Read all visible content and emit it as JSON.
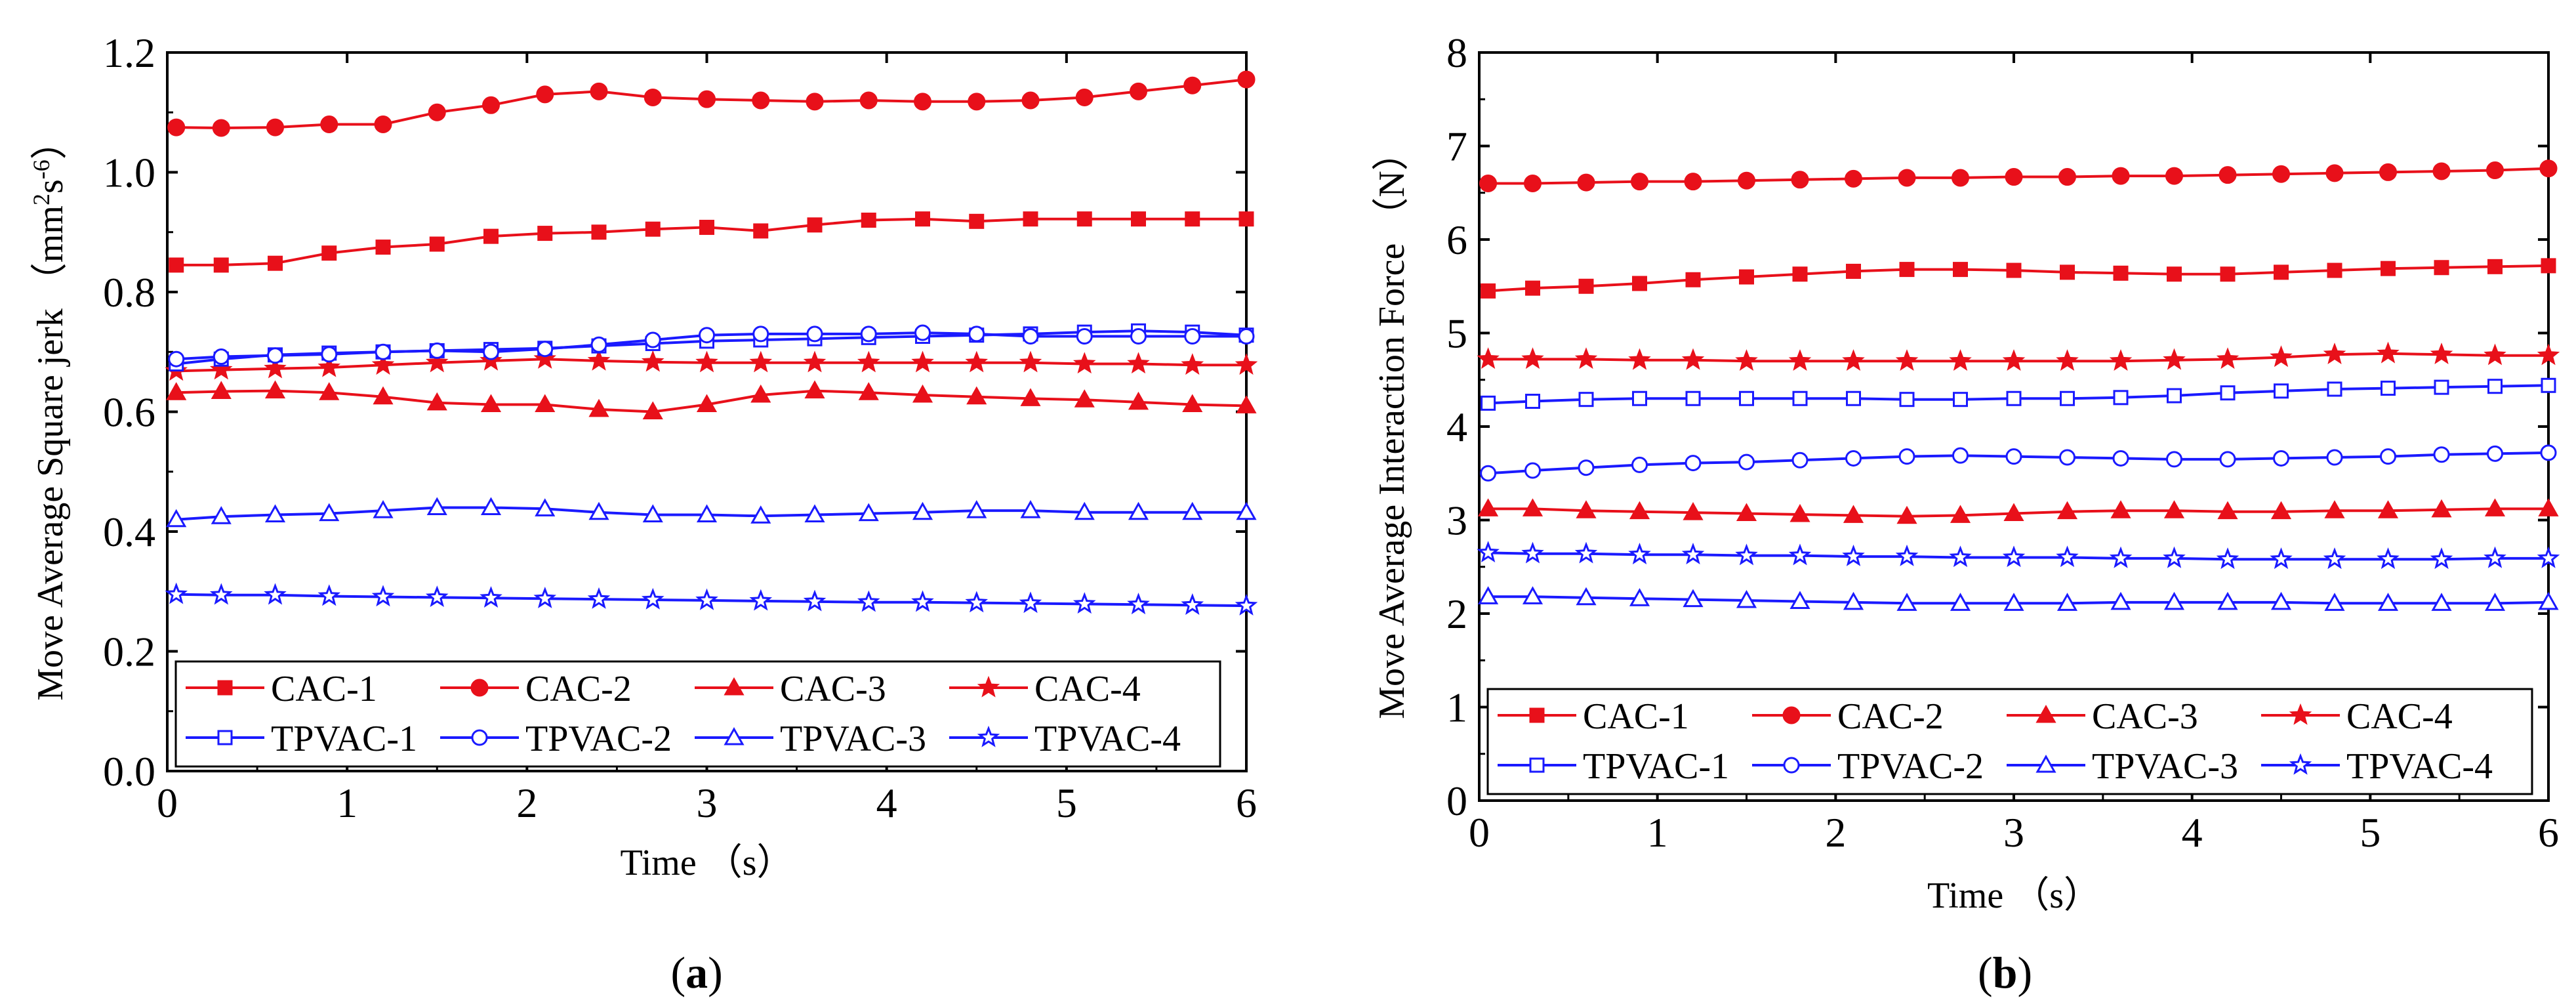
{
  "chart_data": [
    {
      "panel_label": "a",
      "type": "line",
      "xlabel": "Time （s）",
      "ylabel": "Move Average Square jerk （mm²s⁻⁶）",
      "ylabel_main": "Move Average Square jerk",
      "ylabel_unit_pre": "（mm",
      "ylabel_unit_exp1": "2",
      "ylabel_unit_mid": "s",
      "ylabel_unit_exp2": "-6",
      "ylabel_unit_post": "）",
      "xlim": [
        0,
        6
      ],
      "ylim": [
        0,
        1.2
      ],
      "xticks": [
        "0",
        "1",
        "2",
        "3",
        "4",
        "5",
        "6"
      ],
      "yticks": [
        "0.0",
        "0.2",
        "0.4",
        "0.6",
        "0.8",
        "1.0",
        "1.2"
      ],
      "x": [
        0.05,
        0.3,
        0.6,
        0.9,
        1.2,
        1.5,
        1.8,
        2.1,
        2.4,
        2.7,
        3.0,
        3.3,
        3.6,
        3.9,
        4.2,
        4.5,
        4.8,
        5.1,
        5.4,
        5.7,
        6.0
      ],
      "series": [
        {
          "name": "CAC-1",
          "color": "#e8101a",
          "marker": "square-filled",
          "values": [
            0.845,
            0.845,
            0.848,
            0.865,
            0.875,
            0.88,
            0.893,
            0.898,
            0.9,
            0.905,
            0.908,
            0.902,
            0.912,
            0.92,
            0.922,
            0.918,
            0.922,
            0.922,
            0.922,
            0.922,
            0.922
          ]
        },
        {
          "name": "CAC-2",
          "color": "#e8101a",
          "marker": "circle-filled",
          "values": [
            1.075,
            1.074,
            1.075,
            1.08,
            1.08,
            1.1,
            1.112,
            1.13,
            1.135,
            1.125,
            1.122,
            1.12,
            1.118,
            1.12,
            1.118,
            1.118,
            1.12,
            1.125,
            1.135,
            1.145,
            1.155
          ]
        },
        {
          "name": "CAC-3",
          "color": "#e8101a",
          "marker": "triangle-filled",
          "values": [
            0.632,
            0.634,
            0.635,
            0.632,
            0.625,
            0.615,
            0.612,
            0.612,
            0.604,
            0.6,
            0.612,
            0.628,
            0.635,
            0.632,
            0.628,
            0.625,
            0.622,
            0.62,
            0.616,
            0.612,
            0.61
          ]
        },
        {
          "name": "CAC-4",
          "color": "#e8101a",
          "marker": "star-filled",
          "values": [
            0.668,
            0.67,
            0.672,
            0.674,
            0.678,
            0.682,
            0.685,
            0.688,
            0.685,
            0.683,
            0.682,
            0.682,
            0.682,
            0.682,
            0.682,
            0.682,
            0.682,
            0.68,
            0.68,
            0.678,
            0.678
          ]
        },
        {
          "name": "TPVAC-1",
          "color": "#1a1aff",
          "marker": "square-open",
          "values": [
            0.68,
            0.688,
            0.695,
            0.698,
            0.7,
            0.702,
            0.704,
            0.706,
            0.71,
            0.714,
            0.718,
            0.72,
            0.722,
            0.724,
            0.726,
            0.728,
            0.73,
            0.733,
            0.735,
            0.733,
            0.728
          ]
        },
        {
          "name": "TPVAC-2",
          "color": "#1a1aff",
          "marker": "circle-open",
          "values": [
            0.688,
            0.692,
            0.694,
            0.696,
            0.7,
            0.702,
            0.7,
            0.705,
            0.712,
            0.72,
            0.728,
            0.73,
            0.73,
            0.73,
            0.732,
            0.73,
            0.726,
            0.726,
            0.726,
            0.726,
            0.726
          ]
        },
        {
          "name": "TPVAC-3",
          "color": "#1a1aff",
          "marker": "triangle-open",
          "values": [
            0.42,
            0.425,
            0.428,
            0.43,
            0.435,
            0.44,
            0.44,
            0.438,
            0.432,
            0.428,
            0.428,
            0.426,
            0.428,
            0.43,
            0.432,
            0.435,
            0.435,
            0.432,
            0.432,
            0.432,
            0.432
          ]
        },
        {
          "name": "TPVAC-4",
          "color": "#1a1aff",
          "marker": "star-open",
          "values": [
            0.295,
            0.294,
            0.294,
            0.292,
            0.291,
            0.29,
            0.289,
            0.288,
            0.287,
            0.286,
            0.285,
            0.284,
            0.283,
            0.282,
            0.282,
            0.281,
            0.28,
            0.279,
            0.278,
            0.277,
            0.276
          ]
        }
      ]
    },
    {
      "panel_label": "b",
      "type": "line",
      "xlabel": "Time （s）",
      "ylabel": "Move Average Interaction Force （N）",
      "ylabel_main": "Move Average Interaction Force",
      "ylabel_unit_pre": "（N）",
      "xlim": [
        0,
        6
      ],
      "ylim": [
        0,
        8
      ],
      "xticks": [
        "0",
        "1",
        "2",
        "3",
        "4",
        "5",
        "6"
      ],
      "yticks": [
        "0",
        "1",
        "2",
        "3",
        "4",
        "5",
        "6",
        "7",
        "8"
      ],
      "x": [
        0.05,
        0.3,
        0.6,
        0.9,
        1.2,
        1.5,
        1.8,
        2.1,
        2.4,
        2.7,
        3.0,
        3.3,
        3.6,
        3.9,
        4.2,
        4.5,
        4.8,
        5.1,
        5.4,
        5.7,
        6.0
      ],
      "series": [
        {
          "name": "CAC-1",
          "color": "#e8101a",
          "marker": "square-filled",
          "values": [
            5.45,
            5.48,
            5.5,
            5.53,
            5.57,
            5.6,
            5.63,
            5.66,
            5.68,
            5.68,
            5.67,
            5.65,
            5.64,
            5.63,
            5.63,
            5.65,
            5.67,
            5.69,
            5.7,
            5.71,
            5.72
          ]
        },
        {
          "name": "CAC-2",
          "color": "#e8101a",
          "marker": "circle-filled",
          "values": [
            6.6,
            6.6,
            6.61,
            6.62,
            6.62,
            6.63,
            6.64,
            6.65,
            6.66,
            6.66,
            6.67,
            6.67,
            6.68,
            6.68,
            6.69,
            6.7,
            6.71,
            6.72,
            6.73,
            6.74,
            6.76
          ]
        },
        {
          "name": "CAC-3",
          "color": "#e8101a",
          "marker": "triangle-filled",
          "values": [
            3.12,
            3.12,
            3.1,
            3.09,
            3.08,
            3.07,
            3.06,
            3.05,
            3.04,
            3.05,
            3.07,
            3.09,
            3.1,
            3.1,
            3.09,
            3.09,
            3.1,
            3.1,
            3.11,
            3.12,
            3.12
          ]
        },
        {
          "name": "CAC-4",
          "color": "#e8101a",
          "marker": "star-filled",
          "values": [
            4.72,
            4.72,
            4.72,
            4.71,
            4.71,
            4.7,
            4.7,
            4.7,
            4.7,
            4.7,
            4.7,
            4.7,
            4.7,
            4.71,
            4.72,
            4.74,
            4.77,
            4.78,
            4.77,
            4.76,
            4.76
          ]
        },
        {
          "name": "TPVAC-1",
          "color": "#1a1aff",
          "marker": "square-open",
          "values": [
            4.25,
            4.27,
            4.29,
            4.3,
            4.3,
            4.3,
            4.3,
            4.3,
            4.29,
            4.29,
            4.3,
            4.3,
            4.31,
            4.33,
            4.36,
            4.38,
            4.4,
            4.41,
            4.42,
            4.43,
            4.44
          ]
        },
        {
          "name": "TPVAC-2",
          "color": "#1a1aff",
          "marker": "circle-open",
          "values": [
            3.5,
            3.53,
            3.56,
            3.59,
            3.61,
            3.62,
            3.64,
            3.66,
            3.68,
            3.69,
            3.68,
            3.67,
            3.66,
            3.65,
            3.65,
            3.66,
            3.67,
            3.68,
            3.7,
            3.71,
            3.72
          ]
        },
        {
          "name": "TPVAC-3",
          "color": "#1a1aff",
          "marker": "triangle-open",
          "values": [
            2.18,
            2.18,
            2.17,
            2.16,
            2.15,
            2.14,
            2.13,
            2.12,
            2.11,
            2.11,
            2.11,
            2.11,
            2.12,
            2.12,
            2.12,
            2.12,
            2.11,
            2.11,
            2.11,
            2.11,
            2.12
          ]
        },
        {
          "name": "TPVAC-4",
          "color": "#1a1aff",
          "marker": "star-open",
          "values": [
            2.65,
            2.64,
            2.64,
            2.63,
            2.63,
            2.62,
            2.62,
            2.61,
            2.61,
            2.6,
            2.6,
            2.6,
            2.59,
            2.59,
            2.58,
            2.58,
            2.58,
            2.58,
            2.58,
            2.59,
            2.59
          ]
        }
      ]
    }
  ]
}
